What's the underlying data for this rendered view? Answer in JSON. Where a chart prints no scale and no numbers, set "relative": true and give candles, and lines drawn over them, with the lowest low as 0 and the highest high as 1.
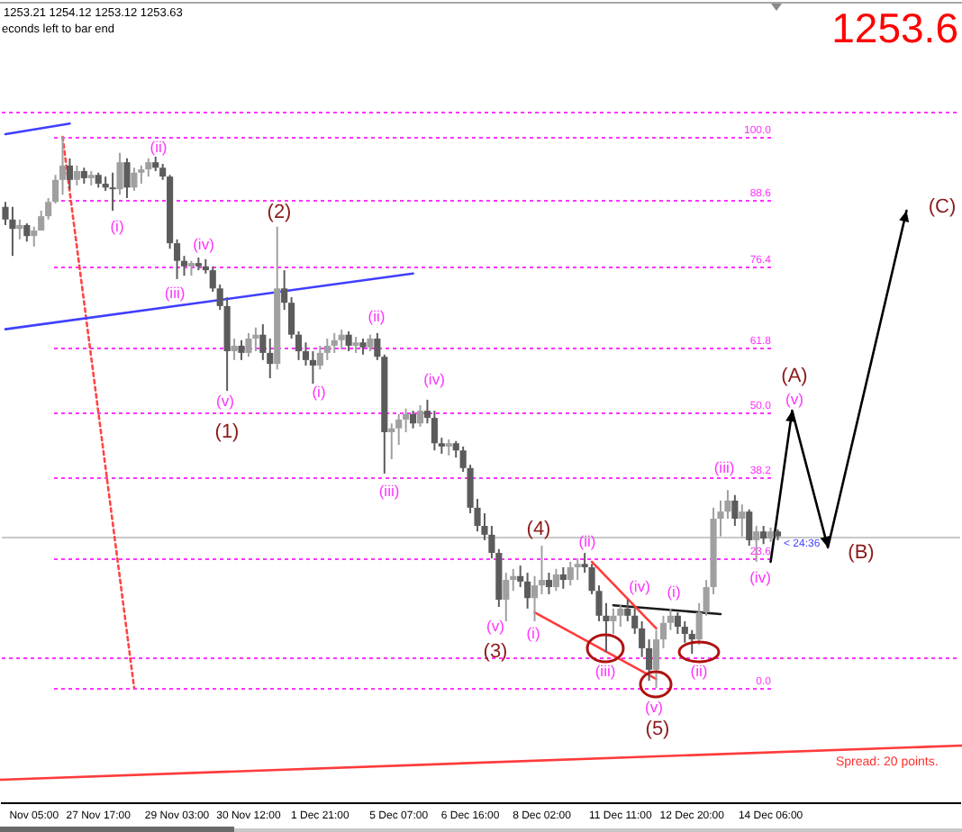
{
  "chart_data": {
    "type": "candlestick",
    "relative": true,
    "categories": [
      null,
      null,
      null,
      null,
      "Nov 05:00",
      null,
      null,
      null,
      null,
      null,
      null,
      null,
      null,
      "27 Nov 17:00",
      null,
      null,
      null,
      null,
      null,
      null,
      null,
      null,
      null,
      null,
      "29 Nov 03:00",
      null,
      null,
      null,
      null,
      null,
      null,
      null,
      null,
      null,
      "30 Nov 12:00",
      null,
      null,
      null,
      null,
      null,
      null,
      null,
      null,
      null,
      "1 Dec 21:00",
      null,
      null,
      null,
      null,
      null,
      null,
      null,
      null,
      null,
      null,
      "5 Dec 07:00",
      null,
      null,
      null,
      null,
      null,
      null,
      null,
      null,
      null,
      "6 Dec 16:00",
      null,
      null,
      null,
      null,
      null,
      null,
      null,
      null,
      null,
      "8 Dec 02:00",
      null,
      null,
      null,
      null,
      null,
      null,
      null,
      null,
      null,
      null,
      "11 Dec 11:00",
      null,
      null,
      null,
      null,
      null,
      null,
      null,
      null,
      null,
      "12 Dec 20:00",
      null,
      null,
      null,
      null,
      null,
      null,
      null,
      null,
      null,
      null,
      "14 Dec 06:00",
      null,
      null,
      null,
      null,
      null,
      null,
      null,
      null,
      null,
      null,
      null,
      null,
      null,
      null,
      null,
      null,
      null,
      null,
      null,
      null,
      null,
      null,
      null,
      null,
      null,
      null
    ],
    "ohlc": [
      [
        0.873,
        0.882,
        0.84,
        0.85
      ],
      [
        0.85,
        0.873,
        0.784,
        0.833
      ],
      [
        0.833,
        0.85,
        0.814,
        0.84
      ],
      [
        0.84,
        0.843,
        0.81,
        0.82
      ],
      [
        0.82,
        0.837,
        0.801,
        0.83
      ],
      [
        0.83,
        0.866,
        0.83,
        0.856
      ],
      [
        0.856,
        0.889,
        0.85,
        0.882
      ],
      [
        0.882,
        0.931,
        0.879,
        0.922
      ],
      [
        0.922,
        1.0,
        0.895,
        0.948
      ],
      [
        0.948,
        0.961,
        0.905,
        0.922
      ],
      [
        0.922,
        0.948,
        0.912,
        0.938
      ],
      [
        0.938,
        0.944,
        0.915,
        0.925
      ],
      [
        0.925,
        0.938,
        0.912,
        0.931
      ],
      [
        0.931,
        0.935,
        0.908,
        0.915
      ],
      [
        0.915,
        0.928,
        0.902,
        0.908
      ],
      [
        0.908,
        0.935,
        0.866,
        0.905
      ],
      [
        0.905,
        0.971,
        0.895,
        0.954
      ],
      [
        0.954,
        0.961,
        0.889,
        0.908
      ],
      [
        0.908,
        0.944,
        0.902,
        0.935
      ],
      [
        0.935,
        0.948,
        0.915,
        0.941
      ],
      [
        0.941,
        0.961,
        0.928,
        0.954
      ],
      [
        0.954,
        0.964,
        0.938,
        0.944
      ],
      [
        0.944,
        0.951,
        0.922,
        0.928
      ],
      [
        0.928,
        0.931,
        0.797,
        0.807
      ],
      [
        0.807,
        0.814,
        0.742,
        0.775
      ],
      [
        0.775,
        0.784,
        0.748,
        0.765
      ],
      [
        0.765,
        0.775,
        0.748,
        0.771
      ],
      [
        0.771,
        0.781,
        0.758,
        0.765
      ],
      [
        0.765,
        0.778,
        0.752,
        0.758
      ],
      [
        0.758,
        0.765,
        0.719,
        0.725
      ],
      [
        0.725,
        0.732,
        0.686,
        0.693
      ],
      [
        0.693,
        0.709,
        0.539,
        0.611
      ],
      [
        0.611,
        0.634,
        0.595,
        0.621
      ],
      [
        0.621,
        0.631,
        0.595,
        0.608
      ],
      [
        0.608,
        0.644,
        0.601,
        0.634
      ],
      [
        0.634,
        0.654,
        0.611,
        0.641
      ],
      [
        0.641,
        0.66,
        0.595,
        0.608
      ],
      [
        0.608,
        0.634,
        0.562,
        0.588
      ],
      [
        0.588,
        0.837,
        0.578,
        0.725
      ],
      [
        0.725,
        0.758,
        0.686,
        0.699
      ],
      [
        0.699,
        0.709,
        0.634,
        0.641
      ],
      [
        0.641,
        0.647,
        0.595,
        0.611
      ],
      [
        0.611,
        0.627,
        0.585,
        0.595
      ],
      [
        0.595,
        0.611,
        0.552,
        0.585
      ],
      [
        0.585,
        0.621,
        0.578,
        0.608
      ],
      [
        0.608,
        0.634,
        0.595,
        0.621
      ],
      [
        0.621,
        0.644,
        0.608,
        0.631
      ],
      [
        0.631,
        0.65,
        0.614,
        0.641
      ],
      [
        0.641,
        0.647,
        0.611,
        0.621
      ],
      [
        0.621,
        0.637,
        0.608,
        0.627
      ],
      [
        0.627,
        0.634,
        0.605,
        0.618
      ],
      [
        0.618,
        0.641,
        0.611,
        0.634
      ],
      [
        0.634,
        0.644,
        0.595,
        0.601
      ],
      [
        0.601,
        0.605,
        0.389,
        0.464
      ],
      [
        0.464,
        0.48,
        0.415,
        0.471
      ],
      [
        0.471,
        0.497,
        0.441,
        0.487
      ],
      [
        0.487,
        0.507,
        0.464,
        0.497
      ],
      [
        0.497,
        0.503,
        0.471,
        0.48
      ],
      [
        0.48,
        0.513,
        0.474,
        0.503
      ],
      [
        0.503,
        0.523,
        0.48,
        0.49
      ],
      [
        0.49,
        0.503,
        0.431,
        0.444
      ],
      [
        0.444,
        0.454,
        0.425,
        0.438
      ],
      [
        0.438,
        0.451,
        0.422,
        0.444
      ],
      [
        0.444,
        0.448,
        0.418,
        0.431
      ],
      [
        0.431,
        0.438,
        0.392,
        0.399
      ],
      [
        0.399,
        0.405,
        0.317,
        0.327
      ],
      [
        0.327,
        0.343,
        0.284,
        0.294
      ],
      [
        0.294,
        0.317,
        0.268,
        0.278
      ],
      [
        0.278,
        0.294,
        0.235,
        0.245
      ],
      [
        0.245,
        0.252,
        0.147,
        0.16
      ],
      [
        0.16,
        0.209,
        0.121,
        0.196
      ],
      [
        0.196,
        0.216,
        0.176,
        0.203
      ],
      [
        0.203,
        0.222,
        0.183,
        0.193
      ],
      [
        0.193,
        0.209,
        0.144,
        0.163
      ],
      [
        0.163,
        0.203,
        0.121,
        0.186
      ],
      [
        0.186,
        0.258,
        0.17,
        0.196
      ],
      [
        0.196,
        0.209,
        0.17,
        0.183
      ],
      [
        0.183,
        0.216,
        0.176,
        0.206
      ],
      [
        0.206,
        0.219,
        0.18,
        0.196
      ],
      [
        0.196,
        0.229,
        0.186,
        0.219
      ],
      [
        0.219,
        0.235,
        0.196,
        0.225
      ],
      [
        0.225,
        0.245,
        0.209,
        0.219
      ],
      [
        0.219,
        0.225,
        0.17,
        0.176
      ],
      [
        0.176,
        0.186,
        0.121,
        0.131
      ],
      [
        0.131,
        0.154,
        0.065,
        0.121
      ],
      [
        0.121,
        0.144,
        0.098,
        0.131
      ],
      [
        0.131,
        0.15,
        0.111,
        0.144
      ],
      [
        0.144,
        0.16,
        0.121,
        0.131
      ],
      [
        0.131,
        0.144,
        0.098,
        0.108
      ],
      [
        0.108,
        0.121,
        0.056,
        0.072
      ],
      [
        0.072,
        0.088,
        0.013,
        0.033
      ],
      [
        0.033,
        0.105,
        0,
        0.088
      ],
      [
        0.088,
        0.131,
        0.072,
        0.118
      ],
      [
        0.118,
        0.144,
        0.105,
        0.131
      ],
      [
        0.131,
        0.137,
        0.098,
        0.111
      ],
      [
        0.111,
        0.121,
        0.082,
        0.098
      ],
      [
        0.098,
        0.105,
        0.062,
        0.088
      ],
      [
        0.088,
        0.154,
        0.078,
        0.137
      ],
      [
        0.137,
        0.196,
        0.131,
        0.183
      ],
      [
        0.183,
        0.327,
        0.17,
        0.307
      ],
      [
        0.307,
        0.34,
        0.275,
        0.32
      ],
      [
        0.32,
        0.359,
        0.307,
        0.34
      ],
      [
        0.34,
        0.35,
        0.294,
        0.307
      ],
      [
        0.307,
        0.333,
        0.275,
        0.32
      ],
      [
        0.32,
        0.324,
        0.258,
        0.268
      ],
      [
        0.268,
        0.294,
        0.229,
        0.284
      ],
      [
        0.284,
        0.294,
        0.261,
        0.271
      ],
      [
        0.271,
        0.291,
        0.265,
        0.284
      ],
      [
        0.284,
        0.288,
        0.268,
        0.275
      ],
      null,
      null,
      null,
      null,
      null,
      null,
      null,
      null,
      null,
      null,
      null,
      null,
      null,
      null,
      null,
      null,
      null,
      null,
      null,
      null,
      null,
      null,
      null,
      null,
      null
    ],
    "colors": [
      "#5c5c5c",
      "#5c5c5c",
      "#a0a0a0",
      "#5c5c5c",
      "#a0a0a0",
      "#a0a0a0",
      "#a0a0a0",
      "#a0a0a0",
      "#a0a0a0",
      "#5c5c5c",
      "#a0a0a0",
      "#5c5c5c",
      "#a0a0a0",
      "#5c5c5c",
      "#5c5c5c",
      "#5c5c5c",
      "#a0a0a0",
      "#5c5c5c",
      "#a0a0a0",
      "#a0a0a0",
      "#a0a0a0",
      "#5c5c5c",
      "#5c5c5c",
      "#5c5c5c",
      "#5c5c5c",
      "#5c5c5c",
      "#a0a0a0",
      "#5c5c5c",
      "#5c5c5c",
      "#5c5c5c",
      "#5c5c5c",
      "#5c5c5c",
      "#a0a0a0",
      "#5c5c5c",
      "#a0a0a0",
      "#a0a0a0",
      "#5c5c5c",
      "#5c5c5c",
      "#a0a0a0",
      "#5c5c5c",
      "#5c5c5c",
      "#5c5c5c",
      "#5c5c5c",
      "#5c5c5c",
      "#a0a0a0",
      "#a0a0a0",
      "#a0a0a0",
      "#a0a0a0",
      "#5c5c5c",
      "#a0a0a0",
      "#5c5c5c",
      "#a0a0a0",
      "#5c5c5c",
      "#5c5c5c",
      "#a0a0a0",
      "#a0a0a0",
      "#a0a0a0",
      "#5c5c5c",
      "#a0a0a0",
      "#5c5c5c",
      "#5c5c5c",
      "#5c5c5c",
      "#a0a0a0",
      "#5c5c5c",
      "#5c5c5c",
      "#5c5c5c",
      "#5c5c5c",
      "#5c5c5c",
      "#5c5c5c",
      "#5c5c5c",
      "#a0a0a0",
      "#a0a0a0",
      "#5c5c5c",
      "#5c5c5c",
      "#a0a0a0",
      "#a0a0a0",
      "#5c5c5c",
      "#a0a0a0",
      "#5c5c5c",
      "#a0a0a0",
      "#a0a0a0",
      "#5c5c5c",
      "#5c5c5c",
      "#5c5c5c",
      "#5c5c5c",
      "#a0a0a0",
      "#a0a0a0",
      "#5c5c5c",
      "#5c5c5c",
      "#5c5c5c",
      "#5c5c5c",
      "#a0a0a0",
      "#a0a0a0",
      "#a0a0a0",
      "#5c5c5c",
      "#5c5c5c",
      "#5c5c5c",
      "#a0a0a0",
      "#a0a0a0",
      "#a0a0a0",
      "#a0a0a0",
      "#a0a0a0",
      "#5c5c5c",
      "#a0a0a0",
      "#5c5c5c",
      "#a0a0a0",
      "#5c5c5c",
      "#a0a0a0",
      "#5c5c5c",
      null,
      null,
      null,
      null,
      null,
      null,
      null,
      null,
      null,
      null,
      null,
      null,
      null,
      null,
      null,
      null,
      null,
      null,
      null,
      null,
      null,
      null,
      null,
      null,
      null
    ],
    "series": [
      {
        "type": "line",
        "color": "#3f3fff",
        "line_style": "solid",
        "values": [
          1.005,
          null,
          null,
          null,
          null,
          null,
          null,
          null,
          null,
          1.024,
          null,
          null,
          null,
          null,
          null,
          null,
          null,
          null,
          null,
          null,
          null,
          null,
          null,
          null,
          null,
          null,
          null,
          null,
          null,
          null,
          null,
          null,
          null,
          null,
          null,
          null,
          null,
          null,
          null,
          null,
          null,
          null,
          null,
          null,
          null,
          null,
          null,
          null,
          null,
          null,
          null,
          null,
          null,
          null,
          null,
          null,
          null,
          null,
          null,
          null,
          null,
          null,
          null,
          null,
          null,
          null,
          null,
          null,
          null,
          null,
          null,
          null,
          null,
          null,
          null,
          null,
          null,
          null,
          null,
          null,
          null,
          null,
          null,
          null,
          null,
          null,
          null,
          null,
          null,
          null,
          null,
          null,
          null,
          null,
          null,
          null,
          null,
          null,
          null,
          null,
          null,
          null,
          null,
          null,
          null,
          null,
          null,
          null,
          null,
          null,
          null,
          null,
          null,
          null,
          null,
          null,
          null,
          null,
          null,
          null,
          null,
          null,
          null,
          null,
          null,
          null,
          null,
          null,
          null,
          null,
          null,
          null,
          null,
          null
        ]
      },
      {
        "type": "line",
        "color": "#3f3fff",
        "line_style": "solid",
        "values": [
          0.651,
          null,
          null,
          null,
          null,
          null,
          null,
          null,
          null,
          null,
          null,
          null,
          null,
          null,
          null,
          null,
          null,
          null,
          null,
          null,
          null,
          null,
          null,
          null,
          null,
          null,
          null,
          null,
          null,
          null,
          null,
          null,
          null,
          null,
          null,
          null,
          null,
          null,
          null,
          null,
          null,
          null,
          null,
          null,
          null,
          null,
          null,
          null,
          null,
          null,
          null,
          null,
          null,
          null,
          null,
          null,
          null,
          0.752,
          null,
          null,
          null,
          null,
          null,
          null,
          null,
          null,
          null,
          null,
          null,
          null,
          null,
          null,
          null,
          null,
          null,
          null,
          null,
          null,
          null,
          null,
          null,
          null,
          null,
          null,
          null,
          null,
          null,
          null,
          null,
          null,
          null,
          null,
          null,
          null,
          null,
          null,
          null,
          null,
          null,
          null,
          null,
          null,
          null,
          null,
          null,
          null,
          null,
          null,
          null,
          null,
          null,
          null,
          null,
          null,
          null,
          null,
          null,
          null,
          null,
          null,
          null,
          null,
          null,
          null,
          null,
          null,
          null,
          null,
          null,
          null,
          null,
          null,
          null,
          null
        ]
      },
      {
        "type": "line",
        "color": "#ff4444",
        "line_style": "dotted",
        "values": [
          null,
          null,
          null,
          null,
          null,
          null,
          null,
          null,
          1.0,
          null,
          null,
          null,
          null,
          null,
          null,
          null,
          null,
          null,
          0,
          null,
          null,
          null,
          null,
          null,
          null,
          null,
          null,
          null,
          null,
          null,
          null,
          null,
          null,
          null,
          null,
          null,
          null,
          null,
          null,
          null,
          null,
          null,
          null,
          null,
          null,
          null,
          null,
          null,
          null,
          null,
          null,
          null,
          null,
          null,
          null,
          null,
          null,
          null,
          null,
          null,
          null,
          null,
          null,
          null,
          null,
          null,
          null,
          null,
          null,
          null,
          null,
          null,
          null,
          null,
          null,
          null,
          null,
          null,
          null,
          null,
          null,
          null,
          null,
          null,
          null,
          null,
          null,
          null,
          null,
          null,
          null,
          null,
          null,
          null,
          null,
          null,
          null,
          null,
          null,
          null,
          null,
          null,
          null,
          null,
          null,
          null,
          null,
          null,
          null,
          null,
          null,
          null,
          null,
          null,
          null,
          null,
          null,
          null,
          null,
          null,
          null,
          null,
          null,
          null,
          null,
          null,
          null,
          null,
          null,
          null,
          null,
          null,
          null,
          null
        ]
      },
      {
        "type": "line",
        "color": "#ff3b3b",
        "line_style": "solid",
        "values": [
          null,
          null,
          null,
          null,
          null,
          null,
          null,
          null,
          null,
          null,
          null,
          null,
          null,
          null,
          null,
          null,
          null,
          null,
          null,
          null,
          null,
          null,
          null,
          null,
          null,
          null,
          null,
          null,
          null,
          null,
          null,
          null,
          null,
          null,
          null,
          null,
          null,
          null,
          null,
          null,
          null,
          null,
          null,
          null,
          null,
          null,
          null,
          null,
          null,
          null,
          null,
          null,
          null,
          null,
          null,
          null,
          null,
          null,
          null,
          null,
          null,
          null,
          null,
          null,
          null,
          null,
          null,
          null,
          null,
          null,
          null,
          null,
          null,
          null,
          0.137,
          null,
          null,
          null,
          null,
          null,
          null,
          null,
          null,
          null,
          null,
          null,
          null,
          null,
          null,
          null,
          null,
          0.016,
          null,
          null,
          null,
          null,
          null,
          null,
          null,
          null,
          null,
          null,
          null,
          null,
          null,
          null,
          null,
          null,
          null,
          null,
          null,
          null,
          null,
          null,
          null,
          null,
          null,
          null,
          null,
          null,
          null,
          null,
          null,
          null,
          null,
          null,
          null,
          null,
          null,
          null,
          null,
          null,
          null,
          null
        ]
      },
      {
        "type": "line",
        "color": "#ff3b3b",
        "line_style": "solid",
        "values": [
          null,
          null,
          null,
          null,
          null,
          null,
          null,
          null,
          null,
          null,
          null,
          null,
          null,
          null,
          null,
          null,
          null,
          null,
          null,
          null,
          null,
          null,
          null,
          null,
          null,
          null,
          null,
          null,
          null,
          null,
          null,
          null,
          null,
          null,
          null,
          null,
          null,
          null,
          null,
          null,
          null,
          null,
          null,
          null,
          null,
          null,
          null,
          null,
          null,
          null,
          null,
          null,
          null,
          null,
          null,
          null,
          null,
          null,
          null,
          null,
          null,
          null,
          null,
          null,
          null,
          null,
          null,
          null,
          null,
          null,
          null,
          null,
          null,
          null,
          null,
          null,
          null,
          null,
          null,
          null,
          null,
          null,
          0.229,
          null,
          null,
          null,
          null,
          null,
          null,
          null,
          null,
          0.108,
          null,
          null,
          null,
          null,
          null,
          null,
          null,
          null,
          null,
          null,
          null,
          null,
          null,
          null,
          null,
          null,
          null,
          null,
          null,
          null,
          null,
          null,
          null,
          null,
          null,
          null,
          null,
          null,
          null,
          null,
          null,
          null,
          null,
          null,
          null,
          null,
          null,
          null,
          null,
          null,
          null,
          null
        ]
      },
      {
        "type": "line",
        "color": "#1a1a1a",
        "line_style": "solid",
        "values": [
          null,
          null,
          null,
          null,
          null,
          null,
          null,
          null,
          null,
          null,
          null,
          null,
          null,
          null,
          null,
          null,
          null,
          null,
          null,
          null,
          null,
          null,
          null,
          null,
          null,
          null,
          null,
          null,
          null,
          null,
          null,
          null,
          null,
          null,
          null,
          null,
          null,
          null,
          null,
          null,
          null,
          null,
          null,
          null,
          null,
          null,
          null,
          null,
          null,
          null,
          null,
          null,
          null,
          null,
          null,
          null,
          null,
          null,
          null,
          null,
          null,
          null,
          null,
          null,
          null,
          null,
          null,
          null,
          null,
          null,
          null,
          null,
          null,
          null,
          null,
          null,
          null,
          null,
          null,
          null,
          null,
          null,
          null,
          null,
          null,
          0.15,
          null,
          null,
          null,
          null,
          null,
          null,
          null,
          null,
          null,
          null,
          null,
          null,
          null,
          null,
          0.134,
          null,
          null,
          null,
          null,
          null,
          null,
          null,
          null,
          null,
          null,
          null,
          null,
          null,
          null,
          null,
          null,
          null,
          null,
          null,
          null,
          null,
          null,
          null,
          null,
          null,
          null,
          null,
          null,
          null,
          null,
          null,
          null,
          null
        ]
      },
      {
        "type": "line",
        "color": "#000000",
        "line_style": "solid",
        "values": [
          null,
          null,
          null,
          null,
          null,
          null,
          null,
          null,
          null,
          null,
          null,
          null,
          null,
          null,
          null,
          null,
          null,
          null,
          null,
          null,
          null,
          null,
          null,
          null,
          null,
          null,
          null,
          null,
          null,
          null,
          null,
          null,
          null,
          null,
          null,
          null,
          null,
          null,
          null,
          null,
          null,
          null,
          null,
          null,
          null,
          null,
          null,
          null,
          null,
          null,
          null,
          null,
          null,
          null,
          null,
          null,
          null,
          null,
          null,
          null,
          null,
          null,
          null,
          null,
          null,
          null,
          null,
          null,
          null,
          null,
          null,
          null,
          null,
          null,
          null,
          null,
          null,
          null,
          null,
          null,
          null,
          null,
          null,
          null,
          null,
          null,
          null,
          null,
          null,
          null,
          null,
          null,
          null,
          null,
          null,
          null,
          null,
          null,
          null,
          null,
          null,
          null,
          null,
          null,
          null,
          null,
          null,
          0.229,
          null,
          null,
          0.503,
          null,
          null,
          null,
          null,
          0.255,
          null,
          null,
          null,
          null,
          null,
          null,
          null,
          null,
          null,
          null,
          0.866,
          null,
          null,
          null,
          null,
          null,
          null,
          null
        ]
      }
    ],
    "ref_lines": [
      {
        "axis": "y",
        "value": 1.0,
        "label": "100.0",
        "color": "#ff33ff",
        "line_style": "dotted"
      },
      {
        "axis": "y",
        "value": 0.886,
        "label": "88.6",
        "color": "#ff33ff",
        "line_style": "dotted"
      },
      {
        "axis": "y",
        "value": 0.764,
        "label": "76.4",
        "color": "#ff33ff",
        "line_style": "dotted"
      },
      {
        "axis": "y",
        "value": 0.618,
        "label": "61.8",
        "color": "#ff33ff",
        "line_style": "dotted"
      },
      {
        "axis": "y",
        "value": 0.5,
        "label": "50.0",
        "color": "#ff33ff",
        "line_style": "dotted"
      },
      {
        "axis": "y",
        "value": 0.382,
        "label": "38.2",
        "color": "#ff33ff",
        "line_style": "dotted"
      },
      {
        "axis": "y",
        "value": 0.236,
        "label": "23.6",
        "color": "#ff33ff",
        "line_style": "dotted"
      },
      {
        "axis": "y",
        "value": 0,
        "label": "0.0",
        "color": "#ff33ff",
        "line_style": "dotted"
      },
      {
        "axis": "y",
        "value": 1.046,
        "color": "#ff33ff",
        "line_style": "dotted"
      },
      {
        "axis": "y",
        "value": 0.056,
        "color": "#ff33ff",
        "line_style": "dotted"
      },
      {
        "axis": "y",
        "value": 0.275,
        "color": "#c8c8c8",
        "line_style": "solid"
      }
    ],
    "annotations": [
      "1253.21 1254.12 1253.12 1253.63",
      "econds left to bar end",
      "1253.6",
      "Spread: 20 points.",
      {
        "text": "< 24:36",
        "y": 0.275
      },
      "(1)",
      "(2)",
      "(3)",
      "(4)",
      "(5)",
      {
        "text": "(A)",
        "y": 0.503
      },
      "(B)",
      "(C)",
      "(i)",
      "(ii)",
      "(iii)",
      "(iv)",
      "(v)",
      "(i)",
      "(ii)",
      "(iii)",
      "(iv)",
      "(v)",
      "(i)",
      "(ii)",
      "(iii)",
      "(iv)",
      "(v)",
      "(i)",
      "(ii)",
      "(iii)",
      "(iv)",
      {
        "text": "(v)",
        "y": 0.503
      }
    ]
  }
}
